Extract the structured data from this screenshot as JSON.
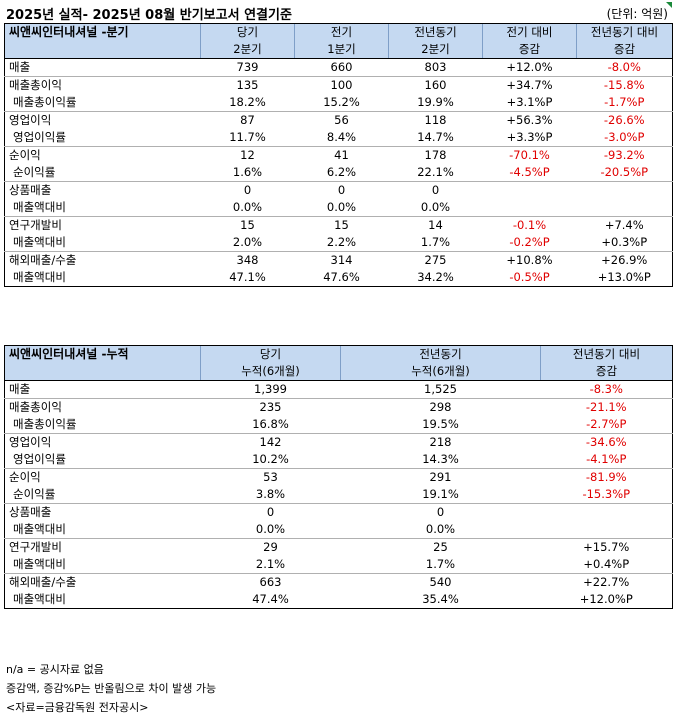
{
  "header": {
    "title": "2025년 실적- 2025년 08월 반기보고서 연결기준",
    "unit": "(단위: 억원)"
  },
  "quarter": {
    "company": "씨앤씨인터내셔널 -분기",
    "columns": [
      [
        "당기",
        "2분기"
      ],
      [
        "전기",
        "1분기"
      ],
      [
        "전년동기",
        "2분기"
      ],
      [
        "전기 대비",
        "증감"
      ],
      [
        "전년동기 대비",
        "증감"
      ]
    ],
    "groups": [
      {
        "name": "매출",
        "main": {
          "cur": "739",
          "prev": "660",
          "yoy": "803",
          "qoq": "+12.0%",
          "qoq_neg": false,
          "yoyc": "-8.0%",
          "yoyc_neg": true
        },
        "sub": null
      },
      {
        "name": "매출총이익",
        "main": {
          "cur": "135",
          "prev": "100",
          "yoy": "160",
          "qoq": "+34.7%",
          "qoq_neg": false,
          "yoyc": "-15.8%",
          "yoyc_neg": true
        },
        "sub": {
          "name": "매출총이익률",
          "cur": "18.2%",
          "prev": "15.2%",
          "yoy": "19.9%",
          "qoq": "+3.1%P",
          "qoq_neg": false,
          "yoyc": "-1.7%P",
          "yoyc_neg": true
        }
      },
      {
        "name": "영업이익",
        "main": {
          "cur": "87",
          "prev": "56",
          "yoy": "118",
          "qoq": "+56.3%",
          "qoq_neg": false,
          "yoyc": "-26.6%",
          "yoyc_neg": true
        },
        "sub": {
          "name": "영업이익률",
          "cur": "11.7%",
          "prev": "8.4%",
          "yoy": "14.7%",
          "qoq": "+3.3%P",
          "qoq_neg": false,
          "yoyc": "-3.0%P",
          "yoyc_neg": true
        }
      },
      {
        "name": "순이익",
        "main": {
          "cur": "12",
          "prev": "41",
          "yoy": "178",
          "qoq": "-70.1%",
          "qoq_neg": true,
          "yoyc": "-93.2%",
          "yoyc_neg": true
        },
        "sub": {
          "name": "순이익률",
          "cur": "1.6%",
          "prev": "6.2%",
          "yoy": "22.1%",
          "qoq": "-4.5%P",
          "qoq_neg": true,
          "yoyc": "-20.5%P",
          "yoyc_neg": true
        }
      },
      {
        "name": "상품매출",
        "main": {
          "cur": "0",
          "prev": "0",
          "yoy": "0",
          "qoq": "",
          "qoq_neg": false,
          "yoyc": "",
          "yoyc_neg": false
        },
        "sub": {
          "name": "매출액대비",
          "cur": "0.0%",
          "prev": "0.0%",
          "yoy": "0.0%",
          "qoq": "",
          "qoq_neg": false,
          "yoyc": "",
          "yoyc_neg": false
        }
      },
      {
        "name": "연구개발비",
        "main": {
          "cur": "15",
          "prev": "15",
          "yoy": "14",
          "qoq": "-0.1%",
          "qoq_neg": true,
          "yoyc": "+7.4%",
          "yoyc_neg": false
        },
        "sub": {
          "name": "매출액대비",
          "cur": "2.0%",
          "prev": "2.2%",
          "yoy": "1.7%",
          "qoq": "-0.2%P",
          "qoq_neg": true,
          "yoyc": "+0.3%P",
          "yoyc_neg": false
        }
      },
      {
        "name": "해외매출/수출",
        "main": {
          "cur": "348",
          "prev": "314",
          "yoy": "275",
          "qoq": "+10.8%",
          "qoq_neg": false,
          "yoyc": "+26.9%",
          "yoyc_neg": false
        },
        "sub": {
          "name": "매출액대비",
          "cur": "47.1%",
          "prev": "47.6%",
          "yoy": "34.2%",
          "qoq": "-0.5%P",
          "qoq_neg": true,
          "yoyc": "+13.0%P",
          "yoyc_neg": false
        }
      }
    ]
  },
  "cumulative": {
    "company": "씨앤씨인터내셔널 -누적",
    "columns": [
      [
        "당기",
        "누적(6개월)"
      ],
      [
        "전년동기",
        "누적(6개월)"
      ],
      [
        "전년동기 대비",
        "증감"
      ]
    ],
    "groups": [
      {
        "name": "매출",
        "main": {
          "cur": "1,399",
          "yoy": "1,525",
          "chg": "-8.3%",
          "chg_neg": true
        },
        "sub": null
      },
      {
        "name": "매출총이익",
        "main": {
          "cur": "235",
          "yoy": "298",
          "chg": "-21.1%",
          "chg_neg": true
        },
        "sub": {
          "name": "매출총이익률",
          "cur": "16.8%",
          "yoy": "19.5%",
          "chg": "-2.7%P",
          "chg_neg": true
        }
      },
      {
        "name": "영업이익",
        "main": {
          "cur": "142",
          "yoy": "218",
          "chg": "-34.6%",
          "chg_neg": true
        },
        "sub": {
          "name": "영업이익률",
          "cur": "10.2%",
          "yoy": "14.3%",
          "chg": "-4.1%P",
          "chg_neg": true
        }
      },
      {
        "name": "순이익",
        "main": {
          "cur": "53",
          "yoy": "291",
          "chg": "-81.9%",
          "chg_neg": true
        },
        "sub": {
          "name": "순이익률",
          "cur": "3.8%",
          "yoy": "19.1%",
          "chg": "-15.3%P",
          "chg_neg": true
        }
      },
      {
        "name": "상품매출",
        "main": {
          "cur": "0",
          "yoy": "0",
          "chg": "",
          "chg_neg": false
        },
        "sub": {
          "name": "매출액대비",
          "cur": "0.0%",
          "yoy": "0.0%",
          "chg": "",
          "chg_neg": false
        }
      },
      {
        "name": "연구개발비",
        "main": {
          "cur": "29",
          "yoy": "25",
          "chg": "+15.7%",
          "chg_neg": false
        },
        "sub": {
          "name": "매출액대비",
          "cur": "2.1%",
          "yoy": "1.7%",
          "chg": "+0.4%P",
          "chg_neg": false
        }
      },
      {
        "name": "해외매출/수출",
        "main": {
          "cur": "663",
          "yoy": "540",
          "chg": "+22.7%",
          "chg_neg": false
        },
        "sub": {
          "name": "매출액대비",
          "cur": "47.4%",
          "yoy": "35.4%",
          "chg": "+12.0%P",
          "chg_neg": false
        }
      }
    ]
  },
  "notes": [
    "n/a = 공시자료 없음",
    "증감액, 증감%P는 반올림으로 차이 발생 가능",
    "<자료=금융감독원 전자공시>"
  ]
}
